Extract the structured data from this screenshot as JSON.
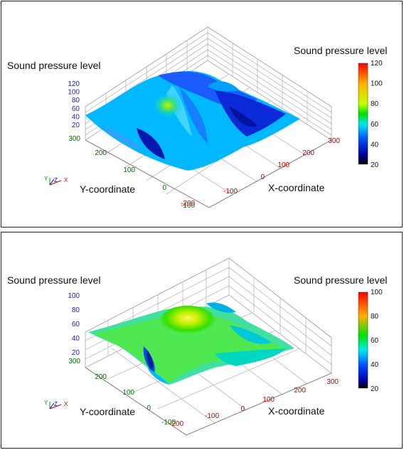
{
  "chart_data": [
    {
      "type": "surface3d",
      "title": "",
      "zlabel": "Sound pressure level",
      "xlabel": "X-coordinate",
      "ylabel": "Y-coordinate",
      "colorbar": {
        "title": "Sound pressure level",
        "range": [
          20,
          120
        ],
        "ticks": [
          "120",
          "100",
          "80",
          "60",
          "40",
          "20"
        ]
      },
      "z_ticks": [
        "120",
        "100",
        "80",
        "60",
        "40",
        "20"
      ],
      "y_ticks": [
        "300",
        "200",
        "100",
        "0",
        "-100"
      ],
      "x_ticks": [
        "-200",
        "-100",
        "0",
        "100",
        "200",
        "300"
      ],
      "zlim": [
        20,
        120
      ],
      "xlim": [
        -200,
        300
      ],
      "ylim": [
        -100,
        300
      ],
      "surface_level_range": [
        40,
        85
      ],
      "peak": {
        "x": 0,
        "y": 150,
        "level": 85
      },
      "axis_indicator": [
        "Y",
        "Z",
        "X"
      ]
    },
    {
      "type": "surface3d",
      "title": "",
      "zlabel": "Sound pressure level",
      "xlabel": "X-coordinate",
      "ylabel": "Y-coordinate",
      "colorbar": {
        "title": "Sound pressure level",
        "range": [
          20,
          100
        ],
        "ticks": [
          "100",
          "80",
          "60",
          "40",
          "20"
        ]
      },
      "z_ticks": [
        "100",
        "80",
        "60",
        "40",
        "20"
      ],
      "y_ticks": [
        "300",
        "200",
        "100",
        "0",
        "-100"
      ],
      "x_ticks": [
        "-200",
        "-100",
        "0",
        "100",
        "200",
        "300"
      ],
      "zlim": [
        20,
        100
      ],
      "xlim": [
        -200,
        300
      ],
      "ylim": [
        -100,
        300
      ],
      "surface_level_range": [
        45,
        78
      ],
      "peak": {
        "x": 0,
        "y": 150,
        "level": 78
      },
      "axis_indicator": [
        "Y",
        "Z",
        "X"
      ]
    }
  ]
}
